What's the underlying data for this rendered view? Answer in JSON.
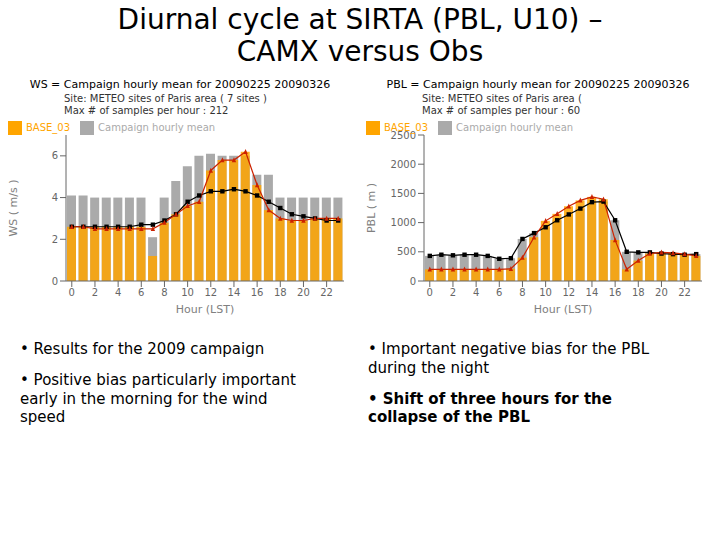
{
  "title": "Diurnal cycle at SIRTA (PBL, U10) –\nCAMX versus Obs",
  "annotations": [
    "•  Results for the 2009 campaign",
    "•  Positive bias particularly important\nearly in the morning for the wind\nspeed",
    "•  Important negative bias for the PBL\nduring the night",
    "•  Shift of three hours for the\ncollapse of the PBL"
  ],
  "chart_data": [
    {
      "type": "bar",
      "title": "WS = Campaign hourly mean for 20090225 20090326",
      "xlabel": "Hour (LST)",
      "ylabel": "WS ( m/s )",
      "x": [
        0,
        1,
        2,
        3,
        4,
        5,
        6,
        7,
        8,
        9,
        10,
        11,
        12,
        13,
        14,
        15,
        16,
        17,
        18,
        19,
        20,
        21,
        22,
        23
      ],
      "xlim": [
        -0.5,
        23.5
      ],
      "xticks": [
        0,
        2,
        4,
        6,
        8,
        10,
        12,
        14,
        16,
        18,
        20,
        22
      ],
      "ylim": [
        0,
        7
      ],
      "yticks": [
        0,
        2,
        4,
        6
      ],
      "grid": false,
      "legend": "upper left",
      "annotations": [
        "Site: METEO sites of Paris area ( 7 sites )\nMax # of samples per hour : 212"
      ],
      "series": [
        {
          "name": "Campaign hourly mean",
          "type": "bar",
          "color": "#aaaaaa",
          "values": [
            4.1,
            4.1,
            4.0,
            4.0,
            4.0,
            4.0,
            4.0,
            2.1,
            4.0,
            4.8,
            5.5,
            6.0,
            6.1,
            6.0,
            6.0,
            6.0,
            5.1,
            5.1,
            4.0,
            4.0,
            4.0,
            4.0,
            4.0,
            4.0
          ]
        },
        {
          "name": "BASE_03",
          "type": "bar",
          "color": "#FFA500",
          "values": [
            2.6,
            2.6,
            2.6,
            2.6,
            2.6,
            2.6,
            2.6,
            1.2,
            2.8,
            3.2,
            3.6,
            3.8,
            5.3,
            5.8,
            5.8,
            6.2,
            4.6,
            3.4,
            3.0,
            2.9,
            2.9,
            3.0,
            3.0,
            3.0
          ]
        },
        {
          "type": "line",
          "color": "#000000",
          "marker": "square",
          "values": [
            2.6,
            2.6,
            2.6,
            2.6,
            2.6,
            2.6,
            2.7,
            2.7,
            2.9,
            3.2,
            3.8,
            4.1,
            4.3,
            4.3,
            4.4,
            4.3,
            4.1,
            3.8,
            3.5,
            3.2,
            3.1,
            3.0,
            2.9,
            2.9
          ]
        },
        {
          "type": "line",
          "color": "#CC2200",
          "marker": "triangle",
          "values": [
            2.6,
            2.6,
            2.5,
            2.5,
            2.5,
            2.5,
            2.5,
            2.5,
            2.8,
            3.2,
            3.6,
            3.8,
            5.3,
            5.8,
            5.8,
            6.2,
            4.6,
            3.4,
            3.0,
            2.9,
            2.9,
            3.0,
            3.0,
            3.0
          ]
        }
      ]
    },
    {
      "type": "bar",
      "title": "PBL = Campaign hourly mean for 20090225 20090326",
      "xlabel": "Hour (LST)",
      "ylabel": "PBL ( m )",
      "x": [
        0,
        1,
        2,
        3,
        4,
        5,
        6,
        7,
        8,
        9,
        10,
        11,
        12,
        13,
        14,
        15,
        16,
        17,
        18,
        19,
        20,
        21,
        22,
        23
      ],
      "xlim": [
        -0.5,
        23.5
      ],
      "xticks": [
        0,
        2,
        4,
        6,
        8,
        10,
        12,
        14,
        16,
        18,
        20,
        22
      ],
      "ylim": [
        0,
        2500
      ],
      "yticks": [
        0,
        500,
        1000,
        1500,
        2000,
        2500
      ],
      "grid": false,
      "legend": "upper left",
      "annotations": [
        "Site: METEO sites of Paris area (\nMax # of samples per hour : 60"
      ],
      "series": [
        {
          "name": "Campaign hourly mean",
          "type": "bar",
          "color": "#aaaaaa",
          "values": [
            430,
            450,
            440,
            450,
            450,
            430,
            380,
            390,
            720,
            820,
            920,
            1040,
            1140,
            1240,
            1350,
            1360,
            1040,
            500,
            490,
            490,
            470,
            460,
            450,
            460
          ]
        },
        {
          "name": "BASE_03",
          "type": "bar",
          "color": "#FFA500",
          "values": [
            200,
            200,
            200,
            200,
            200,
            200,
            200,
            210,
            400,
            750,
            1030,
            1150,
            1280,
            1380,
            1440,
            1400,
            700,
            200,
            350,
            470,
            490,
            480,
            460,
            430
          ]
        },
        {
          "type": "line",
          "color": "#000000",
          "marker": "square",
          "values": [
            430,
            450,
            440,
            450,
            450,
            430,
            380,
            390,
            720,
            820,
            920,
            1040,
            1140,
            1240,
            1350,
            1360,
            1040,
            500,
            490,
            490,
            470,
            460,
            450,
            460
          ]
        },
        {
          "type": "line",
          "color": "#CC2200",
          "marker": "triangle",
          "values": [
            200,
            200,
            200,
            200,
            200,
            200,
            200,
            210,
            400,
            750,
            1030,
            1150,
            1280,
            1380,
            1440,
            1400,
            700,
            200,
            350,
            470,
            490,
            480,
            460,
            430
          ]
        }
      ]
    }
  ]
}
